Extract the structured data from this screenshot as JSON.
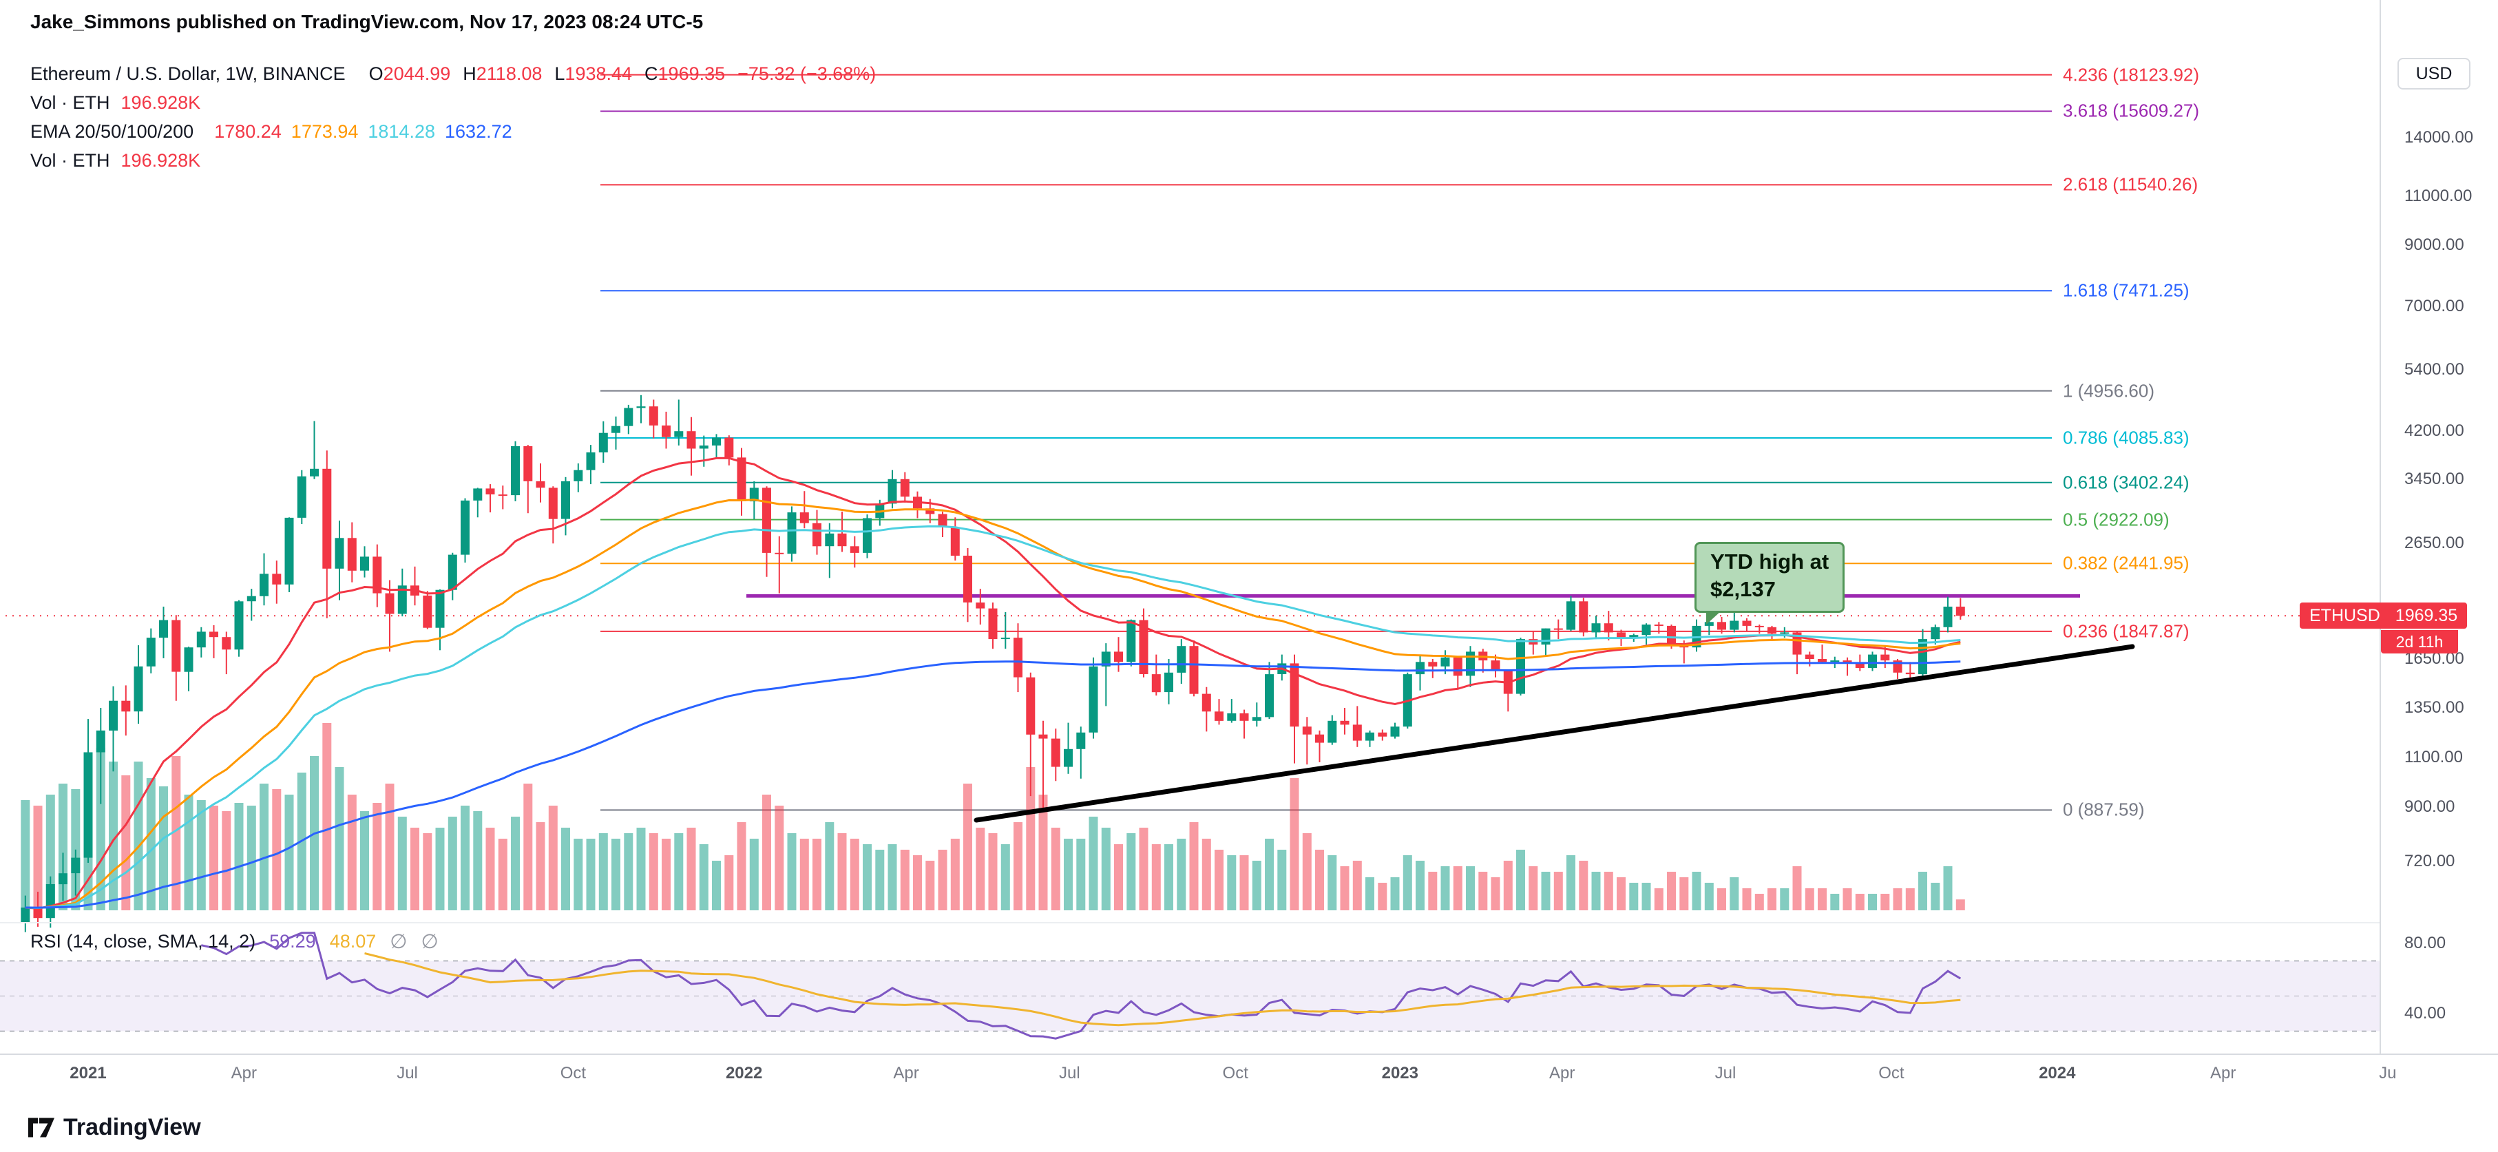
{
  "header": {
    "text": "Jake_Simmons published on TradingView.com, Nov 17, 2023 08:24 UTC-5"
  },
  "legend": {
    "title": "Ethereum / U.S. Dollar, 1W, BINANCE",
    "open_label": "O",
    "open": "2044.99",
    "high_label": "H",
    "high": "2118.08",
    "low_label": "L",
    "low": "1938.44",
    "close_label": "C",
    "close": "1969.35",
    "change": "−75.32 (−3.68%)",
    "vol_label": "Vol · ETH",
    "vol_value": "196.928K",
    "ema_label": "EMA 20/50/100/200",
    "ema_values": [
      {
        "value": "1780.24",
        "color": "#f23645"
      },
      {
        "value": "1773.94",
        "color": "#ff9800"
      },
      {
        "value": "1814.28",
        "color": "#4dd0e1"
      },
      {
        "value": "1632.72",
        "color": "#2962ff"
      }
    ],
    "vol2_label": "Vol · ETH",
    "vol2_value": "196.928K"
  },
  "rsi_legend": {
    "title": "RSI (14, close, SMA, 14, 2)",
    "value": "59.29",
    "ma_value": "48.07",
    "empty1": "∅",
    "empty2": "∅",
    "value_color": "#7e57c2",
    "ma_color": "#f0b42f"
  },
  "annotation": {
    "line1": "YTD high at",
    "line2": "$2,137"
  },
  "price_axis": {
    "currency": "USD",
    "ticks": [
      {
        "label": "14000.00",
        "price": 14000
      },
      {
        "label": "11000.00",
        "price": 11000
      },
      {
        "label": "9000.00",
        "price": 9000
      },
      {
        "label": "7000.00",
        "price": 7000
      },
      {
        "label": "5400.00",
        "price": 5400
      },
      {
        "label": "4200.00",
        "price": 4200
      },
      {
        "label": "3450.00",
        "price": 3450
      },
      {
        "label": "2650.00",
        "price": 2650
      },
      {
        "label": "1650.00",
        "price": 1650
      },
      {
        "label": "1350.00",
        "price": 1350
      },
      {
        "label": "1100.00",
        "price": 1100
      },
      {
        "label": "900.00",
        "price": 900
      },
      {
        "label": "720.00",
        "price": 720
      }
    ],
    "badge": {
      "symbol": "ETHUSD",
      "price": "1969.35",
      "countdown": "2d 11h",
      "color": "#f23645"
    }
  },
  "rsi_axis": {
    "ticks": [
      {
        "label": "80.00",
        "value": 80
      },
      {
        "label": "40.00",
        "value": 40
      }
    ]
  },
  "time_axis": [
    {
      "label": "2021",
      "week": 0,
      "year": true
    },
    {
      "label": "Apr",
      "week": 12.4
    },
    {
      "label": "Jul",
      "week": 25.4
    },
    {
      "label": "Oct",
      "week": 38.6
    },
    {
      "label": "2022",
      "week": 52.2,
      "year": true
    },
    {
      "label": "Apr",
      "week": 65.1
    },
    {
      "label": "Jul",
      "week": 78.1
    },
    {
      "label": "Oct",
      "week": 91.3
    },
    {
      "label": "2023",
      "week": 104.4,
      "year": true
    },
    {
      "label": "Apr",
      "week": 117.3
    },
    {
      "label": "Jul",
      "week": 130.3
    },
    {
      "label": "Oct",
      "week": 143.5
    },
    {
      "label": "2024",
      "week": 156.7,
      "year": true
    },
    {
      "label": "Apr",
      "week": 169.9
    },
    {
      "label": "Ju",
      "week": 183,
      "year": false
    }
  ],
  "watermark": "TradingView",
  "chart_data": {
    "type": "candlestick",
    "symbol": "ETHUSD",
    "exchange": "BINANCE",
    "timeframe": "1W",
    "price_scale": "logarithmic",
    "first_candle_date": "2020-11-30",
    "last_price": 1969.35,
    "columns": [
      "open",
      "high",
      "low",
      "close",
      "volume_k"
    ],
    "volume_unit": "K",
    "candles": [
      [
        560,
        625,
        538,
        595,
        2000
      ],
      [
        595,
        635,
        550,
        570,
        1900
      ],
      [
        570,
        676,
        548,
        655,
        2100
      ],
      [
        655,
        745,
        612,
        685,
        2300
      ],
      [
        685,
        755,
        625,
        730,
        2200
      ],
      [
        730,
        1290,
        715,
        1125,
        2600
      ],
      [
        1125,
        1350,
        910,
        1230,
        2950
      ],
      [
        1230,
        1475,
        1040,
        1390,
        2700
      ],
      [
        1390,
        1480,
        1205,
        1330,
        2450
      ],
      [
        1330,
        1745,
        1265,
        1600,
        2700
      ],
      [
        1600,
        1870,
        1555,
        1800,
        2400
      ],
      [
        1800,
        2045,
        1655,
        1935,
        2250
      ],
      [
        1935,
        1975,
        1390,
        1565,
        2800
      ],
      [
        1565,
        1735,
        1445,
        1730,
        2100
      ],
      [
        1730,
        1880,
        1660,
        1845,
        2000
      ],
      [
        1845,
        1895,
        1655,
        1805,
        1900
      ],
      [
        1805,
        1845,
        1550,
        1715,
        1800
      ],
      [
        1715,
        2100,
        1665,
        2090,
        1950
      ],
      [
        2090,
        2200,
        1930,
        2135,
        1900
      ],
      [
        2135,
        2545,
        2055,
        2340,
        2300
      ],
      [
        2340,
        2470,
        2070,
        2240,
        2200
      ],
      [
        2240,
        2950,
        2170,
        2945,
        2100
      ],
      [
        2945,
        3580,
        2870,
        3490,
        2500
      ],
      [
        3490,
        4380,
        3450,
        3600,
        2800
      ],
      [
        3600,
        3880,
        1950,
        2390,
        3400
      ],
      [
        2390,
        2910,
        2100,
        2710,
        2600
      ],
      [
        2710,
        2890,
        2260,
        2370,
        2100
      ],
      [
        2370,
        2620,
        2305,
        2510,
        1800
      ],
      [
        2510,
        2640,
        2040,
        2160,
        1950
      ],
      [
        2160,
        2280,
        1700,
        1985,
        2300
      ],
      [
        1985,
        2390,
        1965,
        2230,
        1700
      ],
      [
        2230,
        2410,
        2055,
        2140,
        1500
      ],
      [
        2140,
        2180,
        1865,
        1875,
        1400
      ],
      [
        1875,
        2195,
        1710,
        2190,
        1500
      ],
      [
        2190,
        2550,
        2100,
        2530,
        1700
      ],
      [
        2530,
        3190,
        2450,
        3160,
        1900
      ],
      [
        3160,
        3330,
        2950,
        3320,
        1800
      ],
      [
        3320,
        3380,
        3010,
        3240,
        1500
      ],
      [
        3240,
        3360,
        3050,
        3230,
        1300
      ],
      [
        3230,
        4030,
        3150,
        3950,
        1700
      ],
      [
        3950,
        3970,
        3000,
        3420,
        2300
      ],
      [
        3420,
        3680,
        3135,
        3330,
        1600
      ],
      [
        3330,
        3350,
        2650,
        2930,
        1900
      ],
      [
        2930,
        3480,
        2740,
        3420,
        1500
      ],
      [
        3420,
        3680,
        3270,
        3580,
        1300
      ],
      [
        3580,
        3970,
        3380,
        3850,
        1300
      ],
      [
        3850,
        4375,
        3690,
        4170,
        1400
      ],
      [
        4170,
        4460,
        3895,
        4290,
        1300
      ],
      [
        4290,
        4680,
        4150,
        4620,
        1400
      ],
      [
        4620,
        4870,
        4340,
        4650,
        1500
      ],
      [
        4650,
        4780,
        4080,
        4300,
        1400
      ],
      [
        4300,
        4550,
        3910,
        4100,
        1300
      ],
      [
        4100,
        4780,
        3960,
        4200,
        1400
      ],
      [
        4200,
        4450,
        3500,
        3910,
        1500
      ],
      [
        3910,
        4125,
        3630,
        3960,
        1200
      ],
      [
        3960,
        4150,
        3750,
        4090,
        900
      ],
      [
        4090,
        4130,
        3650,
        3770,
        1000
      ],
      [
        3770,
        3920,
        2970,
        3150,
        1600
      ],
      [
        3150,
        3420,
        2925,
        3330,
        1300
      ],
      [
        3330,
        3350,
        2310,
        2550,
        2100
      ],
      [
        2550,
        2730,
        2160,
        2540,
        1900
      ],
      [
        2540,
        3085,
        2460,
        3010,
        1400
      ],
      [
        3010,
        3285,
        2820,
        2880,
        1300
      ],
      [
        2880,
        3040,
        2530,
        2620,
        1300
      ],
      [
        2620,
        2880,
        2300,
        2760,
        1600
      ],
      [
        2760,
        3020,
        2560,
        2620,
        1400
      ],
      [
        2620,
        2730,
        2400,
        2550,
        1300
      ],
      [
        2550,
        2985,
        2495,
        2940,
        1200
      ],
      [
        2940,
        3170,
        2850,
        3120,
        1100
      ],
      [
        3120,
        3580,
        3060,
        3450,
        1200
      ],
      [
        3450,
        3550,
        3135,
        3210,
        1100
      ],
      [
        3210,
        3280,
        2940,
        3060,
        1000
      ],
      [
        3060,
        3180,
        2880,
        2990,
        900
      ],
      [
        2990,
        3020,
        2720,
        2830,
        1100
      ],
      [
        2830,
        2950,
        2470,
        2520,
        1300
      ],
      [
        2520,
        2600,
        1920,
        2080,
        2300
      ],
      [
        2080,
        2200,
        1900,
        2030,
        1500
      ],
      [
        2030,
        2080,
        1720,
        1790,
        1400
      ],
      [
        1790,
        2000,
        1720,
        1800,
        1200
      ],
      [
        1800,
        1910,
        1440,
        1530,
        1600
      ],
      [
        1530,
        1560,
        940,
        1210,
        2600
      ],
      [
        1210,
        1280,
        880,
        1190,
        2100
      ],
      [
        1190,
        1240,
        1000,
        1060,
        1500
      ],
      [
        1060,
        1270,
        1030,
        1140,
        1300
      ],
      [
        1140,
        1250,
        1010,
        1220,
        1300
      ],
      [
        1220,
        1660,
        1190,
        1600,
        1700
      ],
      [
        1600,
        1760,
        1360,
        1700,
        1500
      ],
      [
        1700,
        1805,
        1565,
        1630,
        1200
      ],
      [
        1630,
        1940,
        1600,
        1935,
        1400
      ],
      [
        1935,
        2030,
        1530,
        1550,
        1500
      ],
      [
        1550,
        1680,
        1420,
        1440,
        1200
      ],
      [
        1440,
        1650,
        1370,
        1560,
        1200
      ],
      [
        1560,
        1790,
        1490,
        1740,
        1300
      ],
      [
        1740,
        1780,
        1415,
        1430,
        1600
      ],
      [
        1430,
        1470,
        1225,
        1330,
        1300
      ],
      [
        1330,
        1400,
        1260,
        1280,
        1100
      ],
      [
        1280,
        1400,
        1270,
        1320,
        1000
      ],
      [
        1320,
        1340,
        1190,
        1280,
        1000
      ],
      [
        1280,
        1380,
        1250,
        1300,
        900
      ],
      [
        1300,
        1630,
        1290,
        1550,
        1300
      ],
      [
        1550,
        1680,
        1510,
        1620,
        1100
      ],
      [
        1620,
        1680,
        1075,
        1250,
        2400
      ],
      [
        1250,
        1300,
        1070,
        1210,
        1400
      ],
      [
        1210,
        1230,
        1080,
        1170,
        1100
      ],
      [
        1170,
        1310,
        1160,
        1280,
        1000
      ],
      [
        1280,
        1350,
        1210,
        1260,
        800
      ],
      [
        1260,
        1360,
        1150,
        1180,
        900
      ],
      [
        1180,
        1230,
        1150,
        1220,
        600
      ],
      [
        1220,
        1235,
        1180,
        1200,
        500
      ],
      [
        1200,
        1270,
        1190,
        1250,
        600
      ],
      [
        1250,
        1560,
        1240,
        1550,
        1000
      ],
      [
        1550,
        1680,
        1450,
        1630,
        900
      ],
      [
        1630,
        1650,
        1525,
        1600,
        700
      ],
      [
        1600,
        1710,
        1550,
        1660,
        800
      ],
      [
        1660,
        1670,
        1460,
        1540,
        800
      ],
      [
        1540,
        1740,
        1470,
        1700,
        800
      ],
      [
        1700,
        1720,
        1560,
        1640,
        700
      ],
      [
        1640,
        1680,
        1530,
        1570,
        600
      ],
      [
        1570,
        1580,
        1330,
        1430,
        900
      ],
      [
        1430,
        1800,
        1420,
        1790,
        1100
      ],
      [
        1790,
        1850,
        1680,
        1750,
        800
      ],
      [
        1750,
        1870,
        1670,
        1870,
        700
      ],
      [
        1870,
        1940,
        1790,
        1860,
        700
      ],
      [
        1860,
        2137,
        1850,
        2090,
        1000
      ],
      [
        2090,
        2120,
        1810,
        1840,
        900
      ],
      [
        1840,
        1970,
        1790,
        1910,
        700
      ],
      [
        1910,
        2010,
        1780,
        1840,
        700
      ],
      [
        1840,
        1860,
        1740,
        1800,
        600
      ],
      [
        1800,
        1830,
        1770,
        1820,
        500
      ],
      [
        1820,
        1910,
        1750,
        1900,
        500
      ],
      [
        1900,
        1920,
        1830,
        1890,
        400
      ],
      [
        1890,
        1900,
        1720,
        1750,
        700
      ],
      [
        1750,
        1780,
        1620,
        1730,
        600
      ],
      [
        1730,
        1940,
        1700,
        1890,
        700
      ],
      [
        1890,
        1960,
        1820,
        1920,
        500
      ],
      [
        1920,
        1960,
        1830,
        1860,
        400
      ],
      [
        1860,
        2030,
        1840,
        1930,
        600
      ],
      [
        1930,
        1950,
        1850,
        1890,
        400
      ],
      [
        1890,
        1900,
        1830,
        1880,
        300
      ],
      [
        1880,
        1890,
        1790,
        1830,
        400
      ],
      [
        1830,
        1880,
        1800,
        1840,
        400
      ],
      [
        1840,
        1850,
        1550,
        1680,
        800
      ],
      [
        1680,
        1700,
        1600,
        1650,
        400
      ],
      [
        1650,
        1750,
        1620,
        1630,
        400
      ],
      [
        1630,
        1665,
        1590,
        1640,
        300
      ],
      [
        1640,
        1660,
        1540,
        1620,
        400
      ],
      [
        1620,
        1680,
        1570,
        1590,
        300
      ],
      [
        1590,
        1700,
        1570,
        1680,
        300
      ],
      [
        1680,
        1740,
        1590,
        1640,
        300
      ],
      [
        1640,
        1650,
        1520,
        1560,
        400
      ],
      [
        1560,
        1630,
        1520,
        1550,
        400
      ],
      [
        1550,
        1865,
        1530,
        1790,
        700
      ],
      [
        1790,
        1900,
        1750,
        1880,
        500
      ],
      [
        1880,
        2130,
        1840,
        2045,
        800
      ],
      [
        2044.99,
        2118.08,
        1938.44,
        1969.35,
        196.928
      ]
    ],
    "colors": {
      "up": "#089981",
      "down": "#f23645",
      "vol_up": "rgba(8,153,129,0.5)",
      "vol_down": "rgba(242,54,69,0.5)"
    },
    "ema_periods": [
      20,
      50,
      100,
      200
    ],
    "ema_colors": [
      "#f23645",
      "#ff9800",
      "#4dd0e1",
      "#2962ff"
    ],
    "fib_levels": [
      {
        "level": "4.236",
        "label": "4.236 (18123.92)",
        "price": 18123.92,
        "color": "#f23645"
      },
      {
        "level": "3.618",
        "label": "3.618 (15609.27)",
        "price": 15609.27,
        "color": "#9c27b0"
      },
      {
        "level": "2.618",
        "label": "2.618 (11540.26)",
        "price": 11540.26,
        "color": "#f23645"
      },
      {
        "level": "1.618",
        "label": "1.618 (7471.25)",
        "price": 7471.25,
        "color": "#2962ff"
      },
      {
        "level": "1",
        "label": "1 (4956.60)",
        "price": 4956.6,
        "color": "#787b86"
      },
      {
        "level": "0.786",
        "label": "0.786 (4085.83)",
        "price": 4085.83,
        "color": "#00bcd4"
      },
      {
        "level": "0.618",
        "label": "0.618 (3402.24)",
        "price": 3402.24,
        "color": "#009688"
      },
      {
        "level": "0.5",
        "label": "0.5 (2922.09)",
        "price": 2922.09,
        "color": "#4caf50"
      },
      {
        "level": "0.382",
        "label": "0.382 (2441.95)",
        "price": 2441.95,
        "color": "#ff9800"
      },
      {
        "level": "0.236",
        "label": "0.236 (1847.87)",
        "price": 1847.87,
        "color": "#f23645"
      },
      {
        "level": "0",
        "label": "0 (887.59)",
        "price": 887.59,
        "color": "#787b86"
      }
    ],
    "drawings": {
      "horizontal_line": {
        "price": 2137,
        "from_week": 52.4,
        "to_week": 158.5,
        "color": "#9c27b0",
        "width": 5
      },
      "trend_line": {
        "from_week": 70.7,
        "from_price": 851,
        "to_week": 162.7,
        "to_price": 1735,
        "color": "#000000",
        "width": 7
      }
    },
    "rsi": {
      "period": 14,
      "ma_period": 14,
      "upper": 70,
      "lower": 30,
      "last_value": 59.29,
      "last_ma": 48.07,
      "colors": {
        "line": "#7e57c2",
        "ma": "#f0b42f",
        "band": "rgba(126,87,194,0.1)"
      }
    }
  }
}
